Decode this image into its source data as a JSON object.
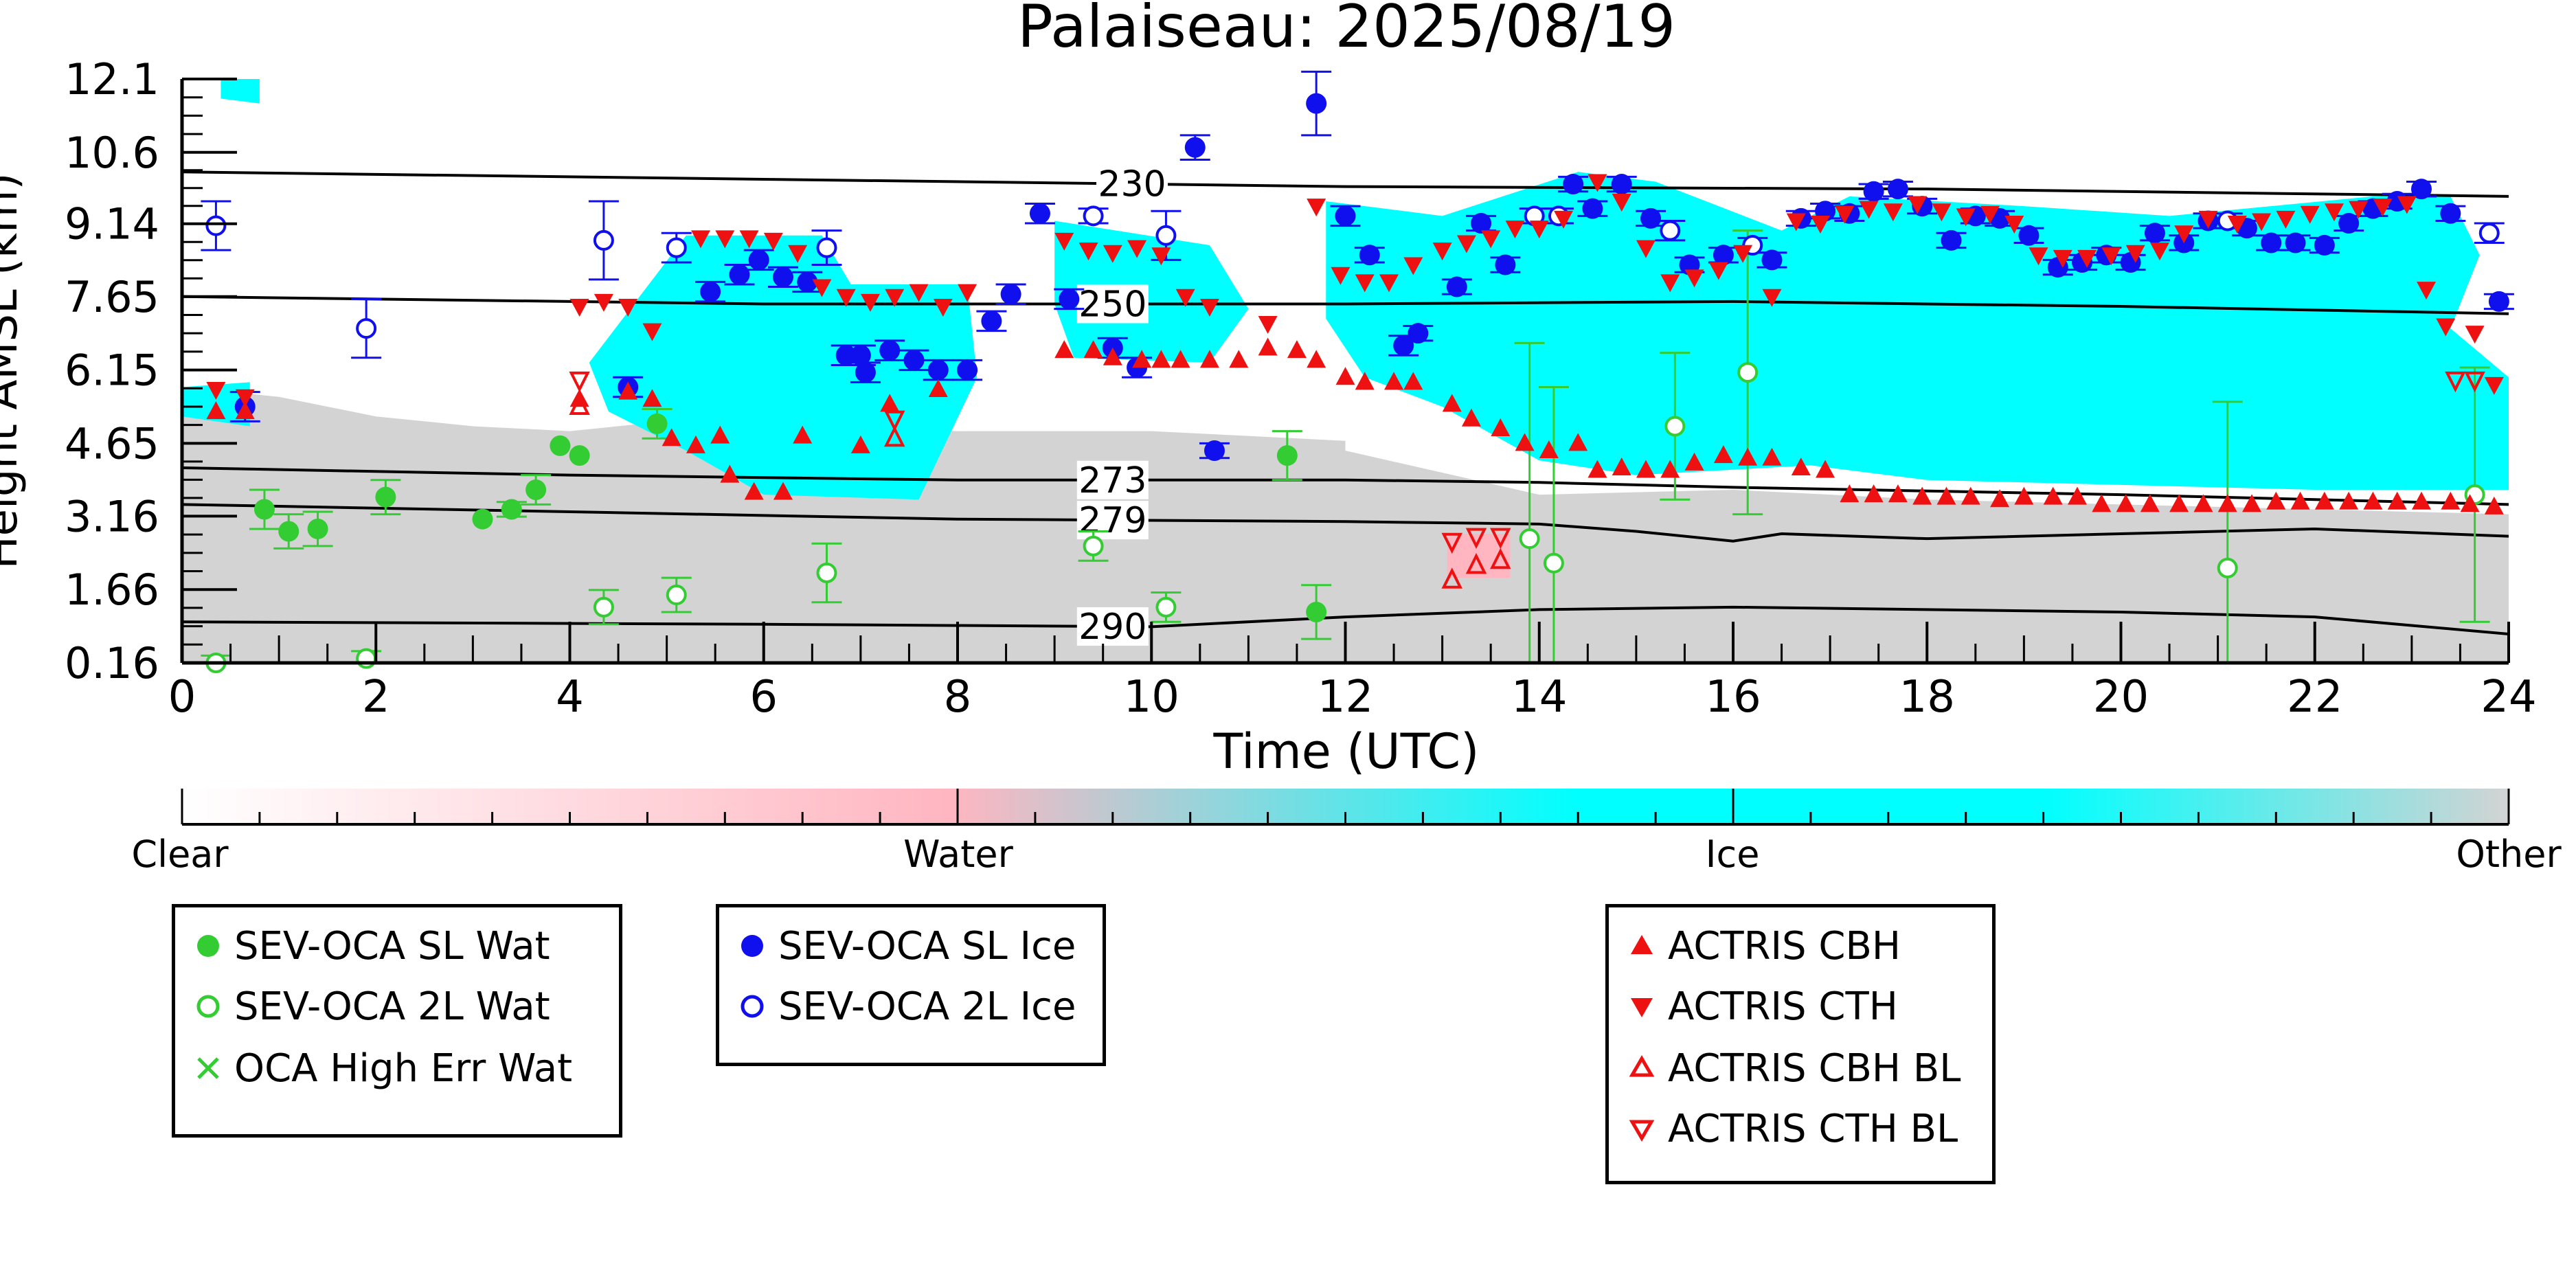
{
  "chart_data": {
    "type": "scatter",
    "title": "Palaiseau: 2025/08/19",
    "xlabel": "Time (UTC)",
    "ylabel": "Height AMSL (km)",
    "xlim": [
      0,
      24
    ],
    "ylim": [
      0.16,
      12.1
    ],
    "xticks": [
      "0",
      "2",
      "4",
      "6",
      "8",
      "10",
      "12",
      "14",
      "16",
      "18",
      "20",
      "22",
      "24"
    ],
    "yticks": [
      "0.16",
      "1.66",
      "3.16",
      "4.65",
      "6.15",
      "7.65",
      "9.14",
      "10.6",
      "12.1"
    ],
    "grid": false,
    "temperature_contours": [
      {
        "label": "230",
        "label_x": 9.8,
        "points": [
          [
            0,
            10.2
          ],
          [
            6,
            10.05
          ],
          [
            12,
            9.9
          ],
          [
            18,
            9.85
          ],
          [
            24,
            9.7
          ]
        ]
      },
      {
        "label": "250",
        "label_x": 9.6,
        "points": [
          [
            0,
            7.65
          ],
          [
            6,
            7.5
          ],
          [
            12,
            7.5
          ],
          [
            16,
            7.55
          ],
          [
            20,
            7.45
          ],
          [
            24,
            7.3
          ]
        ]
      },
      {
        "label": "273",
        "label_x": 9.6,
        "points": [
          [
            0,
            4.15
          ],
          [
            4,
            4.0
          ],
          [
            8,
            3.9
          ],
          [
            12,
            3.9
          ],
          [
            14,
            3.85
          ],
          [
            16,
            3.75
          ],
          [
            20,
            3.6
          ],
          [
            24,
            3.4
          ]
        ]
      },
      {
        "label": "279",
        "label_x": 9.6,
        "points": [
          [
            0,
            3.4
          ],
          [
            4,
            3.25
          ],
          [
            8,
            3.1
          ],
          [
            12,
            3.05
          ],
          [
            14,
            3.0
          ],
          [
            15,
            2.85
          ],
          [
            16,
            2.65
          ],
          [
            16.5,
            2.8
          ],
          [
            18,
            2.7
          ],
          [
            20,
            2.8
          ],
          [
            22,
            2.9
          ],
          [
            24,
            2.75
          ]
        ]
      },
      {
        "label": "290",
        "label_x": 9.6,
        "points": [
          [
            0,
            1.0
          ],
          [
            6,
            0.95
          ],
          [
            10,
            0.9
          ],
          [
            12,
            1.1
          ],
          [
            14,
            1.25
          ],
          [
            16,
            1.3
          ],
          [
            18,
            1.25
          ],
          [
            20,
            1.2
          ],
          [
            22,
            1.1
          ],
          [
            24,
            0.75
          ]
        ]
      }
    ],
    "colorbar": {
      "labels": [
        "Clear",
        "Water",
        "Ice",
        "Other"
      ],
      "colors": [
        "#ffffff",
        "#ffb6c1",
        "#00ffff",
        "#d3d3d3"
      ]
    },
    "colors": {
      "sl_wat": "#33cc33",
      "sl_ice": "#1010ee",
      "actris": "#ee1111",
      "ice_mask": "#00ffff",
      "other_mask": "#d3d3d3",
      "water_mask": "#ffb6c1"
    },
    "series": [
      {
        "name": "SEV-OCA SL Wat",
        "marker": "filled-circle",
        "color": "#33cc33",
        "x": [
          0.85,
          1.1,
          1.4,
          2.1,
          3.1,
          3.4,
          3.65,
          3.9,
          4.1,
          4.9,
          11.4,
          11.7
        ],
        "y": [
          3.3,
          2.85,
          2.9,
          3.55,
          3.1,
          3.3,
          3.7,
          4.6,
          4.4,
          5.05,
          4.4,
          1.2
        ],
        "yerr": [
          0.4,
          0.35,
          0.35,
          0.35,
          0,
          0.15,
          0.3,
          0,
          0,
          0.3,
          0.5,
          0.55
        ]
      },
      {
        "name": "SEV-OCA 2L Wat",
        "marker": "open-circle",
        "color": "#33cc33",
        "x": [
          0.35,
          1.9,
          4.35,
          5.1,
          6.65,
          9.4,
          10.15,
          13.9,
          14.15,
          15.4,
          16.15,
          21.1,
          23.65
        ],
        "y": [
          0.16,
          0.25,
          1.3,
          1.55,
          2.0,
          2.55,
          1.3,
          2.7,
          2.2,
          5.0,
          6.1,
          2.1,
          3.6
        ],
        "yerr": [
          0.15,
          0.15,
          0.35,
          0.35,
          0.6,
          0.3,
          0.3,
          4.0,
          3.6,
          1.5,
          2.9,
          3.4,
          2.6
        ]
      },
      {
        "name": "OCA High Err Wat",
        "marker": "x",
        "color": "#33cc33",
        "x": [],
        "y": []
      },
      {
        "name": "SEV-OCA SL Ice",
        "marker": "filled-circle",
        "color": "#1010ee",
        "x": [
          0.65,
          4.6,
          5.45,
          5.75,
          5.95,
          6.2,
          6.45,
          8.1,
          8.35,
          8.55,
          8.85,
          9.15,
          9.6,
          9.85,
          10.45,
          10.65,
          11.7,
          12.0,
          12.25,
          12.6,
          12.75,
          13.15,
          13.4,
          13.65,
          14.35,
          14.55,
          14.85,
          15.15,
          15.55,
          15.9,
          16.4,
          16.7,
          16.95,
          17.2,
          17.45,
          17.7,
          17.95,
          18.25,
          18.5,
          18.75,
          19.05,
          19.35,
          19.6,
          19.85,
          20.1,
          20.35,
          20.65,
          20.9,
          21.3,
          21.55,
          21.8,
          22.1,
          22.35,
          22.6,
          22.85,
          23.1,
          23.4,
          23.9,
          6.85,
          7.05,
          7.3,
          7.55,
          7.8,
          7.0
        ],
        "y": [
          5.4,
          5.8,
          7.75,
          8.1,
          8.4,
          8.05,
          7.95,
          6.15,
          7.15,
          7.7,
          9.35,
          7.6,
          6.6,
          6.2,
          10.7,
          4.5,
          11.6,
          9.3,
          8.5,
          6.65,
          6.9,
          7.85,
          9.15,
          8.3,
          9.95,
          9.45,
          9.95,
          9.25,
          8.3,
          8.5,
          8.4,
          9.25,
          9.4,
          9.35,
          9.8,
          9.85,
          9.5,
          8.8,
          9.3,
          9.25,
          8.9,
          8.25,
          8.35,
          8.5,
          8.35,
          8.95,
          8.75,
          9.2,
          9.05,
          8.75,
          8.75,
          8.7,
          9.15,
          9.45,
          9.6,
          9.85,
          9.35,
          7.55,
          6.45,
          6.1,
          6.55,
          6.35,
          6.15,
          6.45
        ],
        "yerr": [
          0.3,
          0.2,
          0.2,
          0.2,
          0.2,
          0.2,
          0.2,
          0.2,
          0.2,
          0.2,
          0.2,
          0.2,
          0.2,
          0.2,
          0.25,
          0.15,
          0.65,
          0.2,
          0.15,
          0.2,
          0.15,
          0.15,
          0.15,
          0.15,
          0.15,
          0.15,
          0.15,
          0.15,
          0.15,
          0.15,
          0.15,
          0.15,
          0.15,
          0.15,
          0.15,
          0.15,
          0.15,
          0.15,
          0.15,
          0.15,
          0.15,
          0.15,
          0.15,
          0.15,
          0.15,
          0.15,
          0.15,
          0.15,
          0.15,
          0.15,
          0.15,
          0.15,
          0.15,
          0.15,
          0.15,
          0.15,
          0.15,
          0.15,
          0.2,
          0.2,
          0.2,
          0.2,
          0.2,
          0.2
        ]
      },
      {
        "name": "SEV-OCA 2L Ice",
        "marker": "open-circle",
        "color": "#1010ee",
        "x": [
          0.35,
          1.9,
          4.35,
          5.1,
          6.65,
          9.4,
          10.15,
          13.95,
          14.2,
          15.35,
          16.2,
          21.1,
          23.8
        ],
        "y": [
          9.1,
          7.0,
          8.8,
          8.65,
          8.65,
          9.3,
          8.9,
          9.3,
          9.3,
          9.0,
          8.7,
          9.2,
          8.95
        ],
        "yerr": [
          0.5,
          0.6,
          0.8,
          0.3,
          0.35,
          0.15,
          0.5,
          0.15,
          0.15,
          0.2,
          0.15,
          0.15,
          0.2
        ]
      },
      {
        "name": "ACTRIS CBH",
        "marker": "triangle-up",
        "color": "#ee1111",
        "x": [
          0.35,
          0.65,
          4.1,
          4.6,
          4.85,
          5.05,
          5.3,
          5.55,
          5.65,
          5.9,
          6.2,
          6.4,
          7.0,
          7.3,
          7.8,
          9.1,
          9.4,
          9.6,
          9.9,
          10.1,
          10.3,
          10.6,
          10.9,
          11.2,
          11.5,
          11.7,
          12.0,
          12.2,
          12.5,
          12.7,
          13.1,
          13.3,
          13.6,
          13.85,
          14.1,
          14.4,
          14.6,
          14.85,
          15.1,
          15.35,
          15.6,
          15.9,
          16.15,
          16.4,
          16.7,
          16.95,
          17.2,
          17.45,
          17.7,
          17.95,
          18.2,
          18.45,
          18.75,
          19.0,
          19.3,
          19.55,
          19.8,
          20.05,
          20.3,
          20.6,
          20.85,
          21.1,
          21.35,
          21.6,
          21.85,
          22.1,
          22.35,
          22.6,
          22.85,
          23.1,
          23.4,
          23.6,
          23.85
        ],
        "y": [
          5.3,
          5.3,
          5.55,
          5.7,
          5.55,
          4.75,
          4.6,
          4.8,
          4.0,
          3.65,
          3.65,
          4.8,
          4.6,
          5.45,
          5.75,
          6.55,
          6.55,
          6.4,
          6.35,
          6.35,
          6.35,
          6.35,
          6.35,
          6.6,
          6.55,
          6.35,
          6.0,
          5.9,
          5.9,
          5.9,
          5.45,
          5.15,
          4.95,
          4.65,
          4.5,
          4.65,
          4.1,
          4.15,
          4.1,
          4.1,
          4.25,
          4.4,
          4.35,
          4.35,
          4.15,
          4.1,
          3.6,
          3.6,
          3.6,
          3.55,
          3.55,
          3.55,
          3.5,
          3.55,
          3.55,
          3.55,
          3.4,
          3.4,
          3.4,
          3.4,
          3.4,
          3.4,
          3.4,
          3.45,
          3.45,
          3.45,
          3.45,
          3.45,
          3.45,
          3.45,
          3.45,
          3.4,
          3.35
        ]
      },
      {
        "name": "ACTRIS CTH",
        "marker": "triangle-down",
        "color": "#ee1111",
        "x": [
          0.35,
          0.65,
          4.1,
          4.35,
          4.6,
          4.85,
          5.35,
          5.6,
          5.85,
          6.1,
          6.35,
          6.6,
          6.85,
          7.1,
          7.35,
          7.6,
          7.85,
          8.1,
          9.1,
          9.35,
          9.6,
          9.85,
          10.1,
          10.35,
          10.6,
          11.2,
          11.7,
          11.95,
          12.2,
          12.45,
          12.7,
          13.0,
          13.25,
          13.5,
          13.75,
          14.0,
          14.25,
          14.6,
          14.85,
          15.1,
          15.35,
          15.6,
          15.85,
          16.1,
          16.4,
          16.65,
          16.9,
          17.15,
          17.4,
          17.65,
          17.9,
          18.15,
          18.4,
          18.65,
          18.9,
          19.15,
          19.4,
          19.65,
          19.9,
          20.15,
          20.4,
          20.65,
          20.9,
          21.2,
          21.45,
          21.7,
          21.95,
          22.2,
          22.45,
          22.7,
          22.95,
          23.15,
          23.35,
          23.65,
          23.85
        ],
        "y": [
          5.75,
          5.6,
          7.45,
          7.55,
          7.45,
          6.95,
          8.85,
          8.85,
          8.85,
          8.8,
          8.55,
          7.85,
          7.65,
          7.55,
          7.65,
          7.75,
          7.45,
          7.75,
          8.8,
          8.6,
          8.55,
          8.65,
          8.5,
          7.65,
          7.45,
          7.1,
          9.5,
          8.1,
          7.95,
          7.95,
          8.3,
          8.6,
          8.75,
          8.85,
          9.05,
          9.05,
          9.25,
          10.0,
          9.6,
          8.65,
          7.95,
          8.05,
          8.2,
          8.55,
          7.65,
          9.2,
          9.15,
          9.35,
          9.45,
          9.4,
          9.55,
          9.4,
          9.3,
          9.35,
          9.15,
          8.5,
          8.45,
          8.45,
          8.5,
          8.55,
          8.6,
          8.95,
          9.25,
          9.15,
          9.2,
          9.25,
          9.35,
          9.4,
          9.45,
          9.5,
          9.55,
          7.8,
          7.05,
          6.9,
          5.85
        ]
      },
      {
        "name": "ACTRIS CBH BL",
        "marker": "open-triangle-up",
        "color": "#ee1111",
        "x": [
          4.1,
          7.35,
          13.1,
          13.35,
          13.6
        ],
        "y": [
          5.4,
          4.75,
          1.85,
          2.15,
          2.25
        ]
      },
      {
        "name": "ACTRIS CTH BL",
        "marker": "open-triangle-down",
        "color": "#ee1111",
        "x": [
          4.1,
          7.35,
          13.1,
          13.35,
          13.6,
          23.45,
          23.65
        ],
        "y": [
          5.95,
          5.15,
          2.65,
          2.75,
          2.75,
          5.95,
          5.95
        ]
      }
    ]
  },
  "legend": {
    "box1": [
      "SEV-OCA SL Wat",
      "SEV-OCA 2L Wat",
      "OCA High Err Wat"
    ],
    "box2": [
      "SEV-OCA SL Ice",
      "SEV-OCA 2L Ice"
    ],
    "box3": [
      "ACTRIS CBH",
      "ACTRIS CTH",
      "ACTRIS CBH BL",
      "ACTRIS CTH BL"
    ]
  }
}
